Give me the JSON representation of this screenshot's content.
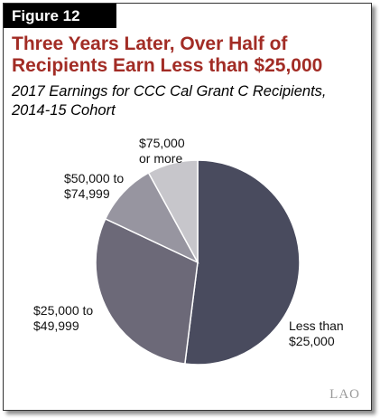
{
  "figure_label": "Figure 12",
  "title": "Three Years Later, Over Half of Recipients Earn Less than $25,000",
  "subtitle": "2017 Earnings for CCC Cal Grant C Recipients, 2014-15 Cohort",
  "logo_text": "LAO",
  "chart_data": {
    "type": "pie",
    "title": "Three Years Later, Over Half of Recipients Earn Less than $25,000",
    "subtitle": "2017 Earnings for CCC Cal Grant C Recipients, 2014-15 Cohort",
    "start": "12 o'clock",
    "direction": "clockwise",
    "slices": [
      {
        "label": "Less than\n$25,000",
        "value": 52,
        "color": "#494b5e"
      },
      {
        "label": "$25,000 to\n$49,999",
        "value": 30,
        "color": "#6c6978"
      },
      {
        "label": "$50,000 to\n$74,999",
        "value": 10,
        "color": "#9795a0"
      },
      {
        "label": "$75,000\nor more",
        "value": 8,
        "color": "#c7c6cb"
      }
    ]
  }
}
